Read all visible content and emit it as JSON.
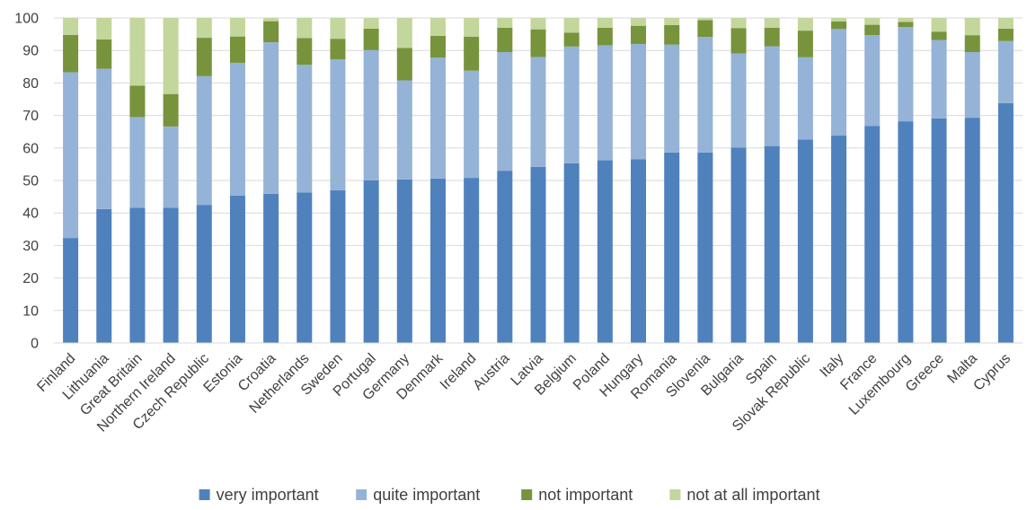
{
  "chart_data": {
    "type": "bar",
    "stacked": true,
    "title": "",
    "xlabel": "",
    "ylabel": "",
    "ylim": [
      0,
      100
    ],
    "yticks": [
      0,
      10,
      20,
      30,
      40,
      50,
      60,
      70,
      80,
      90,
      100
    ],
    "grid": true,
    "legend_position": "bottom",
    "categories": [
      "Finland",
      "Lithuania",
      "Great Britain",
      "Northern Ireland",
      "Czech Republic",
      "Estonia",
      "Croatia",
      "Netherlands",
      "Sweden",
      "Portugal",
      "Germany",
      "Denmark",
      "Ireland",
      "Austria",
      "Latvia",
      "Belgium",
      "Poland",
      "Hungary",
      "Romania",
      "Slovenia",
      "Bulgaria",
      "Spain",
      "Slovak Republic",
      "Italy",
      "France",
      "Luxembourg",
      "Greece",
      "Malta",
      "Cyprus"
    ],
    "series": [
      {
        "name": "very important",
        "color": "#4f81bd",
        "values": [
          32.3,
          41.2,
          41.6,
          41.6,
          42.5,
          45.3,
          45.9,
          46.3,
          47.0,
          50.0,
          50.3,
          50.6,
          50.8,
          53.0,
          54.2,
          55.3,
          56.2,
          56.5,
          58.6,
          58.6,
          60.1,
          60.6,
          62.6,
          63.8,
          66.8,
          68.2,
          69.1,
          69.3,
          73.8
        ]
      },
      {
        "name": "quite important",
        "color": "#95b3d7",
        "values": [
          51.0,
          43.2,
          27.9,
          25.0,
          39.6,
          40.9,
          46.6,
          39.3,
          40.3,
          40.1,
          30.5,
          37.2,
          33.0,
          36.5,
          33.8,
          35.9,
          35.4,
          35.5,
          33.2,
          35.6,
          29.0,
          30.7,
          25.3,
          32.8,
          27.9,
          29.0,
          24.1,
          20.2,
          19.1
        ]
      },
      {
        "name": "not important",
        "color": "#77933c",
        "values": [
          11.5,
          9.0,
          9.7,
          10.0,
          11.8,
          8.1,
          6.5,
          8.2,
          6.3,
          6.6,
          10.0,
          6.7,
          10.4,
          7.5,
          8.5,
          4.3,
          5.4,
          5.6,
          6.0,
          5.1,
          7.8,
          5.7,
          8.2,
          2.3,
          3.2,
          1.6,
          2.6,
          5.2,
          3.8
        ]
      },
      {
        "name": "not at all important",
        "color": "#c3d69b",
        "values": [
          5.2,
          6.6,
          20.8,
          23.4,
          6.1,
          5.7,
          1.0,
          6.2,
          6.4,
          3.3,
          9.2,
          5.5,
          5.8,
          3.0,
          3.5,
          4.5,
          3.0,
          2.4,
          2.2,
          0.7,
          3.1,
          3.0,
          3.9,
          1.1,
          2.1,
          1.2,
          4.2,
          5.3,
          3.3
        ]
      }
    ]
  }
}
